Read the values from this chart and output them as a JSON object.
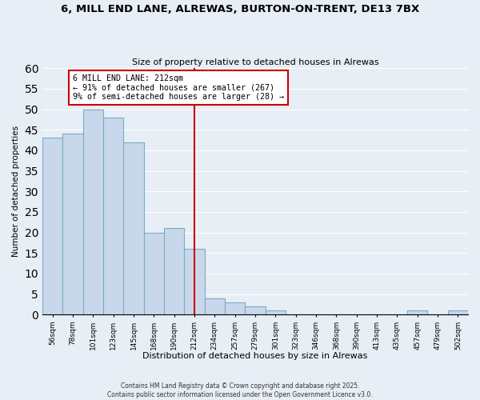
{
  "title": "6, MILL END LANE, ALREWAS, BURTON-ON-TRENT, DE13 7BX",
  "subtitle": "Size of property relative to detached houses in Alrewas",
  "xlabel": "Distribution of detached houses by size in Alrewas",
  "ylabel": "Number of detached properties",
  "bin_labels": [
    "56sqm",
    "78sqm",
    "101sqm",
    "123sqm",
    "145sqm",
    "168sqm",
    "190sqm",
    "212sqm",
    "234sqm",
    "257sqm",
    "279sqm",
    "301sqm",
    "323sqm",
    "346sqm",
    "368sqm",
    "390sqm",
    "413sqm",
    "435sqm",
    "457sqm",
    "479sqm",
    "502sqm"
  ],
  "bar_heights": [
    43,
    44,
    50,
    48,
    42,
    20,
    21,
    16,
    4,
    3,
    2,
    1,
    0,
    0,
    0,
    0,
    0,
    0,
    1,
    0,
    1
  ],
  "bar_color": "#c8d8ea",
  "bar_edge_color": "#7aaac8",
  "vline_x_index": 7,
  "vline_color": "#cc0000",
  "annotation_title": "6 MILL END LANE: 212sqm",
  "annotation_line1": "← 91% of detached houses are smaller (267)",
  "annotation_line2": "9% of semi-detached houses are larger (28) →",
  "annotation_box_facecolor": "#ffffff",
  "annotation_box_edgecolor": "#cc0000",
  "ylim": [
    0,
    60
  ],
  "yticks": [
    0,
    5,
    10,
    15,
    20,
    25,
    30,
    35,
    40,
    45,
    50,
    55,
    60
  ],
  "footer_line1": "Contains HM Land Registry data © Crown copyright and database right 2025.",
  "footer_line2": "Contains public sector information licensed under the Open Government Licence v3.0.",
  "bg_color": "#e8eef5",
  "plot_bg_color": "#e8eef5",
  "grid_color": "#ffffff"
}
